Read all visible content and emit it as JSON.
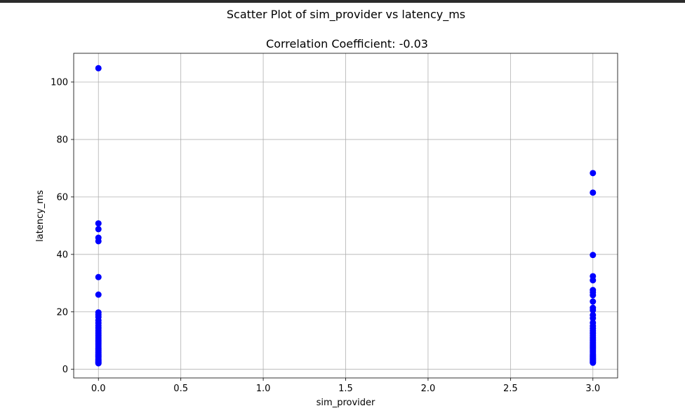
{
  "chart_data": {
    "type": "scatter",
    "suptitle": "Scatter Plot of sim_provider vs latency_ms",
    "title": "Correlation Coefficient: -0.03",
    "xlabel": "sim_provider",
    "ylabel": "latency_ms",
    "xlim": [
      -0.15,
      3.15
    ],
    "ylim": [
      -3,
      110
    ],
    "xticks": [
      0.0,
      0.5,
      1.0,
      1.5,
      2.0,
      2.5,
      3.0
    ],
    "xtick_labels": [
      "0.0",
      "0.5",
      "1.0",
      "1.5",
      "2.0",
      "2.5",
      "3.0"
    ],
    "yticks": [
      0,
      20,
      40,
      60,
      80,
      100
    ],
    "ytick_labels": [
      "0",
      "20",
      "40",
      "60",
      "80",
      "100"
    ],
    "grid": true,
    "marker_color": "#0000ff",
    "series": [
      {
        "x": [
          0,
          0,
          0,
          0,
          0,
          0,
          0,
          0,
          0,
          0,
          0,
          0,
          0,
          0,
          0,
          0,
          0,
          0,
          0,
          0,
          0,
          0,
          0,
          0,
          0,
          0,
          0,
          0,
          0,
          0,
          0,
          0,
          0,
          0,
          0,
          0,
          0,
          0,
          0,
          0,
          3,
          3,
          3,
          3,
          3,
          3,
          3,
          3,
          3,
          3,
          3,
          3,
          3,
          3,
          3,
          3,
          3,
          3,
          3,
          3,
          3,
          3,
          3,
          3,
          3,
          3,
          3,
          3,
          3,
          3,
          3,
          3,
          3,
          3,
          3,
          3,
          3,
          3,
          3,
          3
        ],
        "y": [
          104.8,
          50.8,
          48.8,
          45.8,
          44.6,
          32.1,
          26.0,
          19.8,
          19.0,
          18.2,
          17.0,
          16.1,
          15.2,
          14.4,
          13.6,
          13.0,
          12.4,
          11.8,
          11.2,
          10.6,
          10.0,
          9.5,
          9.0,
          8.5,
          8.0,
          7.5,
          7.0,
          6.5,
          6.0,
          5.6,
          5.2,
          4.8,
          4.4,
          4.0,
          3.6,
          3.2,
          2.9,
          2.6,
          2.3,
          2.1,
          68.3,
          61.5,
          39.8,
          32.4,
          31.0,
          27.6,
          26.8,
          25.8,
          23.6,
          21.4,
          20.6,
          18.9,
          17.8,
          16.2,
          15.1,
          14.2,
          13.4,
          12.6,
          11.9,
          11.2,
          10.6,
          10.0,
          9.4,
          8.8,
          8.2,
          7.7,
          7.2,
          6.7,
          6.2,
          5.7,
          5.2,
          4.8,
          4.4,
          4.0,
          3.7,
          3.4,
          3.1,
          2.8,
          2.5,
          2.3
        ]
      }
    ]
  }
}
